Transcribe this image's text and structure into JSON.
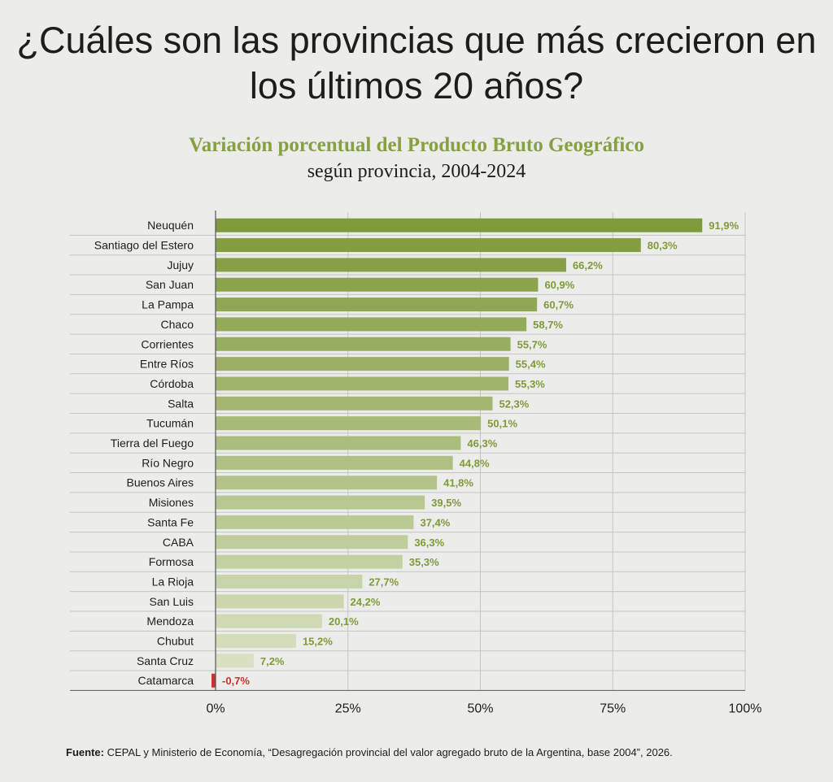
{
  "headline": "¿Cuáles son las provincias que más crecieron en los últimos 20 años?",
  "chart_data": {
    "type": "bar",
    "orientation": "horizontal",
    "title": "Variación porcentual del Producto Bruto Geográfico",
    "subtitle": "según provincia, 2004-2024",
    "categories": [
      "Neuquén",
      "Santiago del Estero",
      "Jujuy",
      "San Juan",
      "La Pampa",
      "Chaco",
      "Corrientes",
      "Entre Ríos",
      "Córdoba",
      "Salta",
      "Tucumán",
      "Tierra del Fuego",
      "Río Negro",
      "Buenos Aires",
      "Misiones",
      "Santa Fe",
      "CABA",
      "Formosa",
      "La Rioja",
      "San Luis",
      "Mendoza",
      "Chubut",
      "Santa Cruz",
      "Catamarca"
    ],
    "values": [
      91.9,
      80.3,
      66.2,
      60.9,
      60.7,
      58.7,
      55.7,
      55.4,
      55.3,
      52.3,
      50.1,
      46.3,
      44.8,
      41.8,
      39.5,
      37.4,
      36.3,
      35.3,
      27.7,
      24.2,
      20.1,
      15.2,
      7.2,
      -0.7
    ],
    "labels": [
      "91,9%",
      "80,3%",
      "66,2%",
      "60,9%",
      "60,7%",
      "58,7%",
      "55,7%",
      "55,4%",
      "55,3%",
      "52,3%",
      "50,1%",
      "46,3%",
      "44,8%",
      "41,8%",
      "39,5%",
      "37,4%",
      "36,3%",
      "35,3%",
      "27,7%",
      "24,2%",
      "20,1%",
      "15,2%",
      "7,2%",
      "-0,7%"
    ],
    "xlim": [
      0,
      100
    ],
    "xticks": [
      0,
      25,
      50,
      75,
      100
    ],
    "xtick_labels": [
      "0%",
      "25%",
      "50%",
      "75%",
      "100%"
    ],
    "grid": true,
    "colors": {
      "top": "#7f9a3a",
      "bottom": "#d7e0c0",
      "label": "#7f9a3a",
      "negative": "#c8332b",
      "grid": "#c4c4c0",
      "axis": "#555555"
    }
  },
  "source": {
    "label": "Fuente:",
    "text": "CEPAL y Ministerio de Economía, “Desagregación provincial del valor agregado bruto de la Argentina, base 2004”, 2026."
  }
}
